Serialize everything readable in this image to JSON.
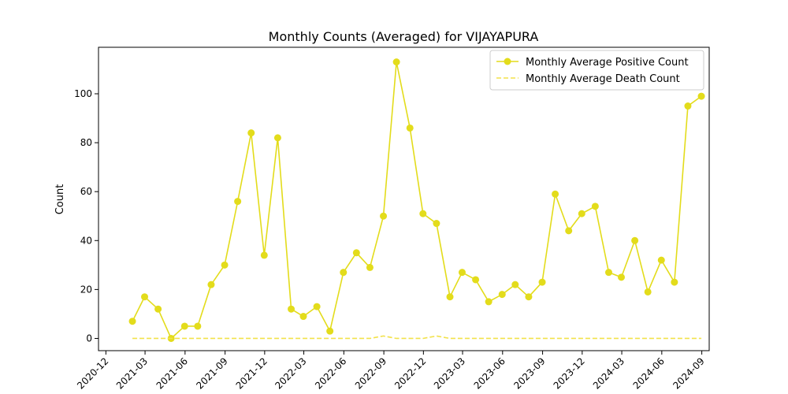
{
  "chart_data": {
    "type": "line",
    "title": "Monthly Counts (Averaged) for VIJAYAPURA",
    "xlabel": "",
    "ylabel": "Count",
    "x_ticks": [
      "2020-12",
      "2021-03",
      "2021-06",
      "2021-09",
      "2021-12",
      "2022-03",
      "2022-06",
      "2022-09",
      "2022-12",
      "2023-03",
      "2023-06",
      "2023-09",
      "2023-12",
      "2024-03",
      "2024-06",
      "2024-09"
    ],
    "y_ticks": [
      0,
      20,
      40,
      60,
      80,
      100
    ],
    "ylim": [
      -5,
      119
    ],
    "xlim": [
      "2020-11-14",
      "2024-09-18"
    ],
    "grid": false,
    "legend_position": "top-right",
    "x": [
      "2021-01-31",
      "2021-02-28",
      "2021-03-31",
      "2021-04-30",
      "2021-05-31",
      "2021-06-30",
      "2021-07-31",
      "2021-08-31",
      "2021-09-30",
      "2021-10-31",
      "2021-11-30",
      "2021-12-31",
      "2022-01-31",
      "2022-02-28",
      "2022-03-31",
      "2022-04-30",
      "2022-05-31",
      "2022-06-30",
      "2022-07-31",
      "2022-08-31",
      "2022-09-30",
      "2022-10-31",
      "2022-11-30",
      "2022-12-31",
      "2023-01-31",
      "2023-02-28",
      "2023-03-31",
      "2023-04-30",
      "2023-05-31",
      "2023-06-30",
      "2023-07-31",
      "2023-08-31",
      "2023-09-30",
      "2023-10-31",
      "2023-11-30",
      "2023-12-31",
      "2024-01-31",
      "2024-02-29",
      "2024-03-31",
      "2024-04-30",
      "2024-05-31",
      "2024-06-30",
      "2024-07-31",
      "2024-08-31"
    ],
    "series": [
      {
        "name": "Monthly Average Positive Count",
        "style": "solid-marker",
        "color": "#e3dc1b",
        "values": [
          7,
          17,
          12,
          0,
          5,
          5,
          22,
          30,
          56,
          84,
          34,
          82,
          12,
          9,
          13,
          3,
          27,
          35,
          29,
          50,
          113,
          86,
          51,
          47,
          17,
          27,
          24,
          15,
          18,
          22,
          17,
          23,
          59,
          44,
          51,
          54,
          27,
          25,
          40,
          19,
          32,
          23,
          95,
          99
        ]
      },
      {
        "name": "Monthly Average Death Count",
        "style": "dashed",
        "color": "#f2e24a",
        "values": [
          0,
          0,
          0,
          0,
          0,
          0,
          0,
          0,
          0,
          0,
          0,
          0,
          0,
          0,
          0,
          0,
          0,
          0,
          0,
          1,
          0,
          0,
          0,
          1,
          0,
          0,
          0,
          0,
          0,
          0,
          0,
          0,
          0,
          0,
          0,
          0,
          0,
          0,
          0,
          0,
          0,
          0,
          0,
          0
        ]
      }
    ]
  }
}
